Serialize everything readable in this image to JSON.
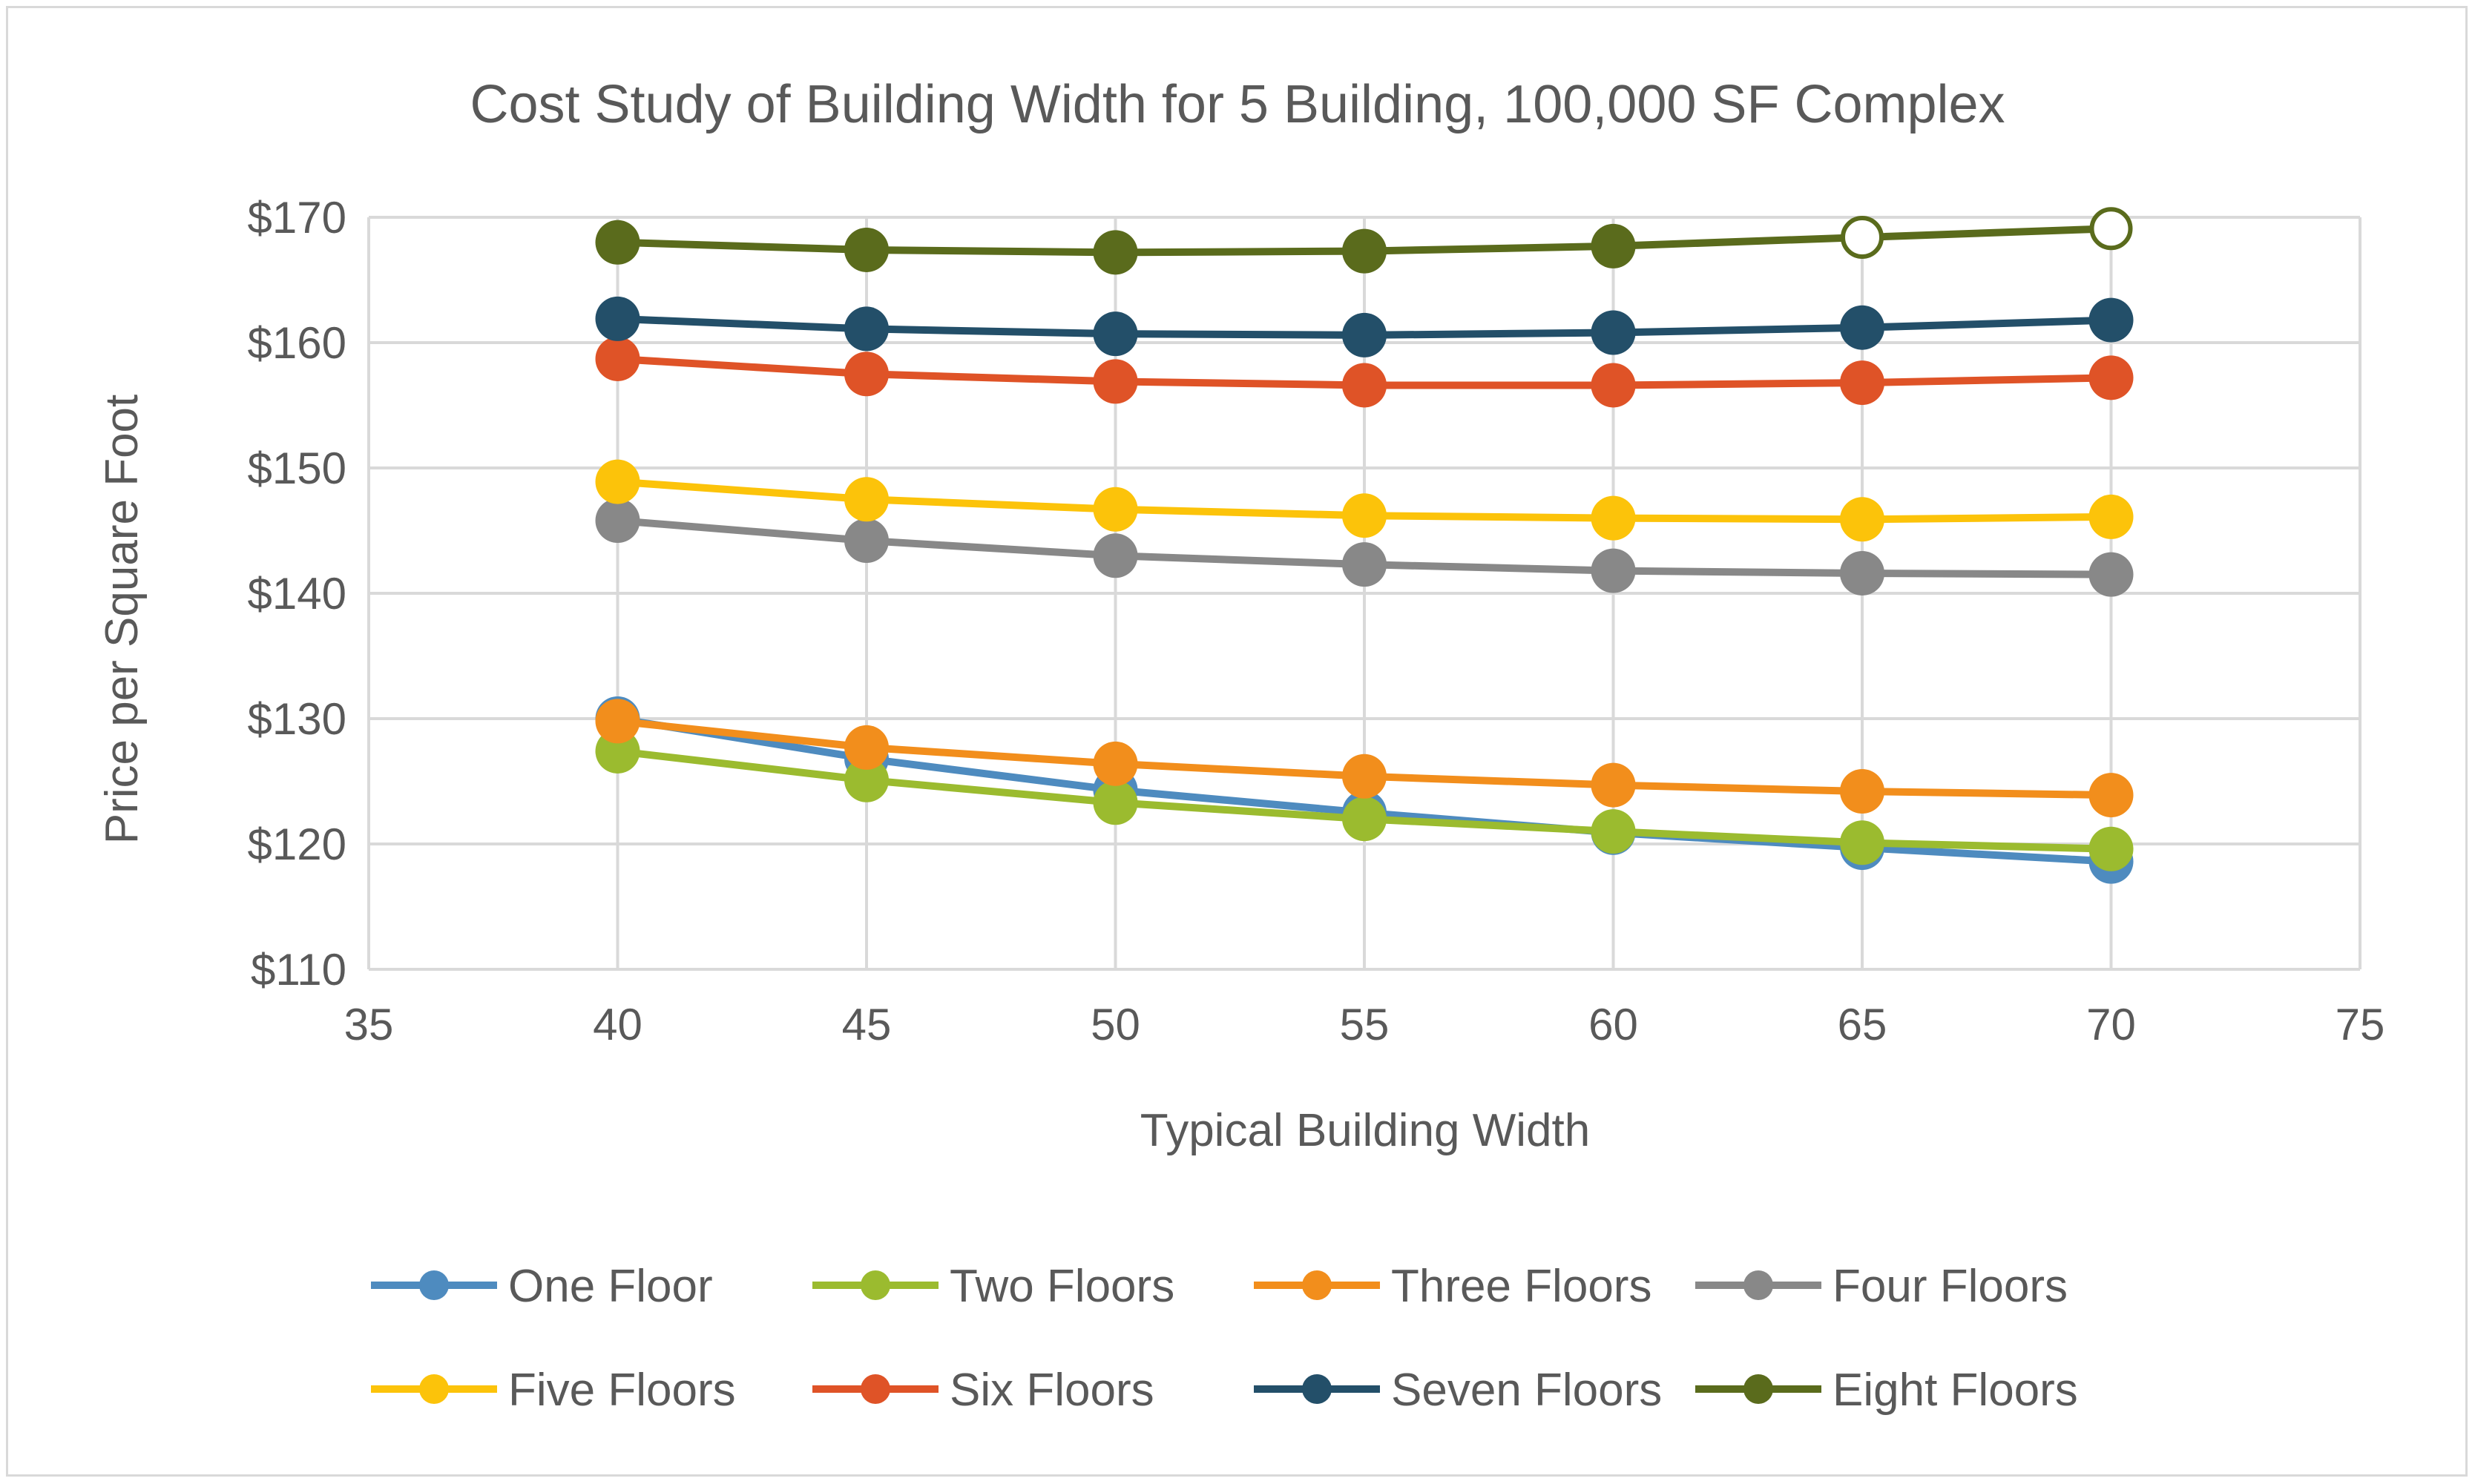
{
  "chart_data": {
    "type": "line",
    "title": "Cost Study of Building Width for 5 Building, 100,000 SF Complex",
    "xlabel": "Typical Building Width",
    "ylabel": "Price per Square Foot",
    "xlim": [
      35,
      75
    ],
    "ylim": [
      110,
      170
    ],
    "x_ticks": [
      "35",
      "40",
      "45",
      "50",
      "55",
      "60",
      "65",
      "70",
      "75"
    ],
    "y_ticks": [
      "$110",
      "$120",
      "$130",
      "$140",
      "$150",
      "$160",
      "$170"
    ],
    "grid": true,
    "legend_position": "bottom",
    "x": [
      40,
      45,
      50,
      55,
      60,
      65,
      70
    ],
    "series": [
      {
        "name": "One Floor",
        "color": "#4e8bbf",
        "values": [
          130.0,
          126.8,
          124.3,
          122.5,
          120.9,
          119.7,
          118.6
        ],
        "hollow": []
      },
      {
        "name": "Two Floors",
        "color": "#9bbb2f",
        "values": [
          127.4,
          125.1,
          123.3,
          122.0,
          121.0,
          120.1,
          119.6
        ],
        "hollow": []
      },
      {
        "name": "Three Floors",
        "color": "#f28e1c",
        "values": [
          129.8,
          127.7,
          126.4,
          125.4,
          124.7,
          124.2,
          123.9
        ],
        "hollow": []
      },
      {
        "name": "Four Floors",
        "color": "#888888",
        "values": [
          145.8,
          144.2,
          143.0,
          142.3,
          141.8,
          141.6,
          141.5
        ],
        "hollow": []
      },
      {
        "name": "Five Floors",
        "color": "#fcc30a",
        "values": [
          148.9,
          147.5,
          146.7,
          146.2,
          146.0,
          145.9,
          146.1
        ],
        "hollow": []
      },
      {
        "name": "Six Floors",
        "color": "#df5327",
        "values": [
          158.7,
          157.5,
          156.9,
          156.6,
          156.6,
          156.8,
          157.2
        ],
        "hollow": []
      },
      {
        "name": "Seven Floors",
        "color": "#234f69",
        "values": [
          161.9,
          161.1,
          160.7,
          160.6,
          160.8,
          161.2,
          161.8
        ],
        "hollow": []
      },
      {
        "name": "Eight Floors",
        "color": "#5a6b1c",
        "values": [
          168.0,
          167.4,
          167.2,
          167.3,
          167.7,
          168.4,
          169.1
        ],
        "hollow": [
          5,
          6
        ]
      }
    ],
    "legend_rows": [
      [
        "One Floor",
        "Two Floors",
        "Three Floors",
        "Four Floors"
      ],
      [
        "Five Floors",
        "Six Floors",
        "Seven Floors",
        "Eight Floors"
      ]
    ]
  }
}
